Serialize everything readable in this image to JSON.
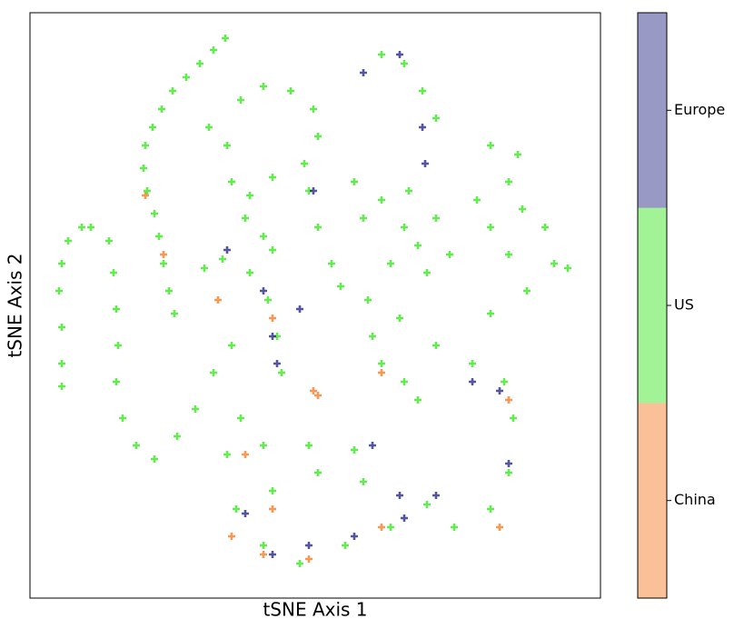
{
  "chart_data": {
    "type": "scatter",
    "xlabel": "tSNE Axis 1",
    "ylabel": "tSNE Axis 2",
    "xlim": [
      0,
      628
    ],
    "ylim": [
      0,
      644
    ],
    "series": [
      {
        "name": "China",
        "color": "#f5761a",
        "x": [
          127,
          147,
          207,
          312,
          317,
          267,
          387,
          527,
          237,
          267,
          387,
          257,
          307,
          517,
          222
        ],
        "y": [
          443,
          378,
          328,
          228,
          223,
          308,
          248,
          218,
          158,
          98,
          78,
          48,
          43,
          78,
          68
        ]
      },
      {
        "name": "US",
        "color": "#2ee514",
        "x": [
          215,
          202,
          187,
          172,
          157,
          145,
          135,
          127,
          125,
          129,
          137,
          142,
          147,
          153,
          159,
          57,
          42,
          35,
          32,
          35,
          35,
          35,
          67,
          87,
          92,
          95,
          97,
          95,
          102,
          117,
          137,
          162,
          182,
          202,
          222,
          232,
          257,
          287,
          312,
          317,
          302,
          267,
          242,
          237,
          257,
          267,
          197,
          217,
          222,
          357,
          387,
          417,
          447,
          427,
          397,
          437,
          367,
          412,
          462,
          387,
          412,
          432,
          447,
          507,
          537,
          527,
          492,
          507,
          542,
          567,
          527,
          577,
          592,
          547,
          507,
          192,
          212,
          242,
          262,
          272,
          277,
          307,
          317,
          332,
          342,
          372,
          377,
          387,
          412,
          427,
          407,
          447,
          487,
          522,
          532,
          527,
          507,
          467,
          437,
          397,
          347,
          297,
          257,
          227,
          217,
          232,
          257,
          307,
          357,
          267,
          317,
          367
        ],
        "y": [
          616,
          603,
          588,
          573,
          558,
          538,
          518,
          498,
          473,
          448,
          423,
          398,
          368,
          338,
          313,
          408,
          393,
          368,
          338,
          298,
          258,
          233,
          408,
          393,
          358,
          318,
          278,
          238,
          198,
          168,
          153,
          178,
          208,
          248,
          278,
          548,
          563,
          558,
          538,
          508,
          478,
          463,
          443,
          418,
          398,
          383,
          518,
          498,
          458,
          458,
          438,
          448,
          418,
          388,
          368,
          358,
          418,
          408,
          378,
          598,
          588,
          558,
          528,
          498,
          488,
          458,
          438,
          408,
          428,
          408,
          378,
          368,
          363,
          338,
          313,
          363,
          373,
          358,
          328,
          288,
          248,
          448,
          408,
          368,
          343,
          328,
          288,
          258,
          238,
          218,
          308,
          278,
          258,
          238,
          198,
          138,
          98,
          78,
          103,
          78,
          58,
          38,
          58,
          98,
          158,
          198,
          168,
          168,
          163,
          118,
          138,
          128
        ]
      },
      {
        "name": "Europe",
        "color": "#1c1c7e",
        "x": [
          367,
          407,
          432,
          435,
          312,
          257,
          267,
          272,
          217,
          297,
          377,
          407,
          447,
          487,
          517,
          527,
          357,
          307,
          267,
          237,
          412
        ],
        "y": [
          578,
          598,
          518,
          478,
          448,
          338,
          288,
          258,
          383,
          318,
          168,
          113,
          113,
          238,
          228,
          148,
          68,
          58,
          48,
          93,
          88
        ]
      }
    ]
  }
}
